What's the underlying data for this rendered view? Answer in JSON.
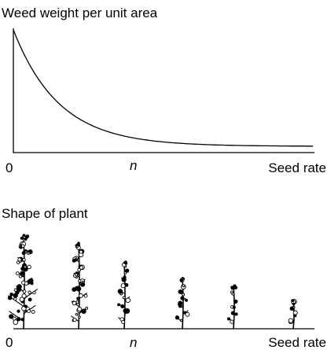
{
  "top_panel": {
    "title": "Weed weight per unit area",
    "x_origin_label": "0",
    "x_marker_label": "n",
    "x_axis_label": "Seed rate"
  },
  "bottom_panel": {
    "title": "Shape of plant",
    "x_origin_label": "0",
    "x_marker_label": "n",
    "x_axis_label": "Seed rate"
  }
}
